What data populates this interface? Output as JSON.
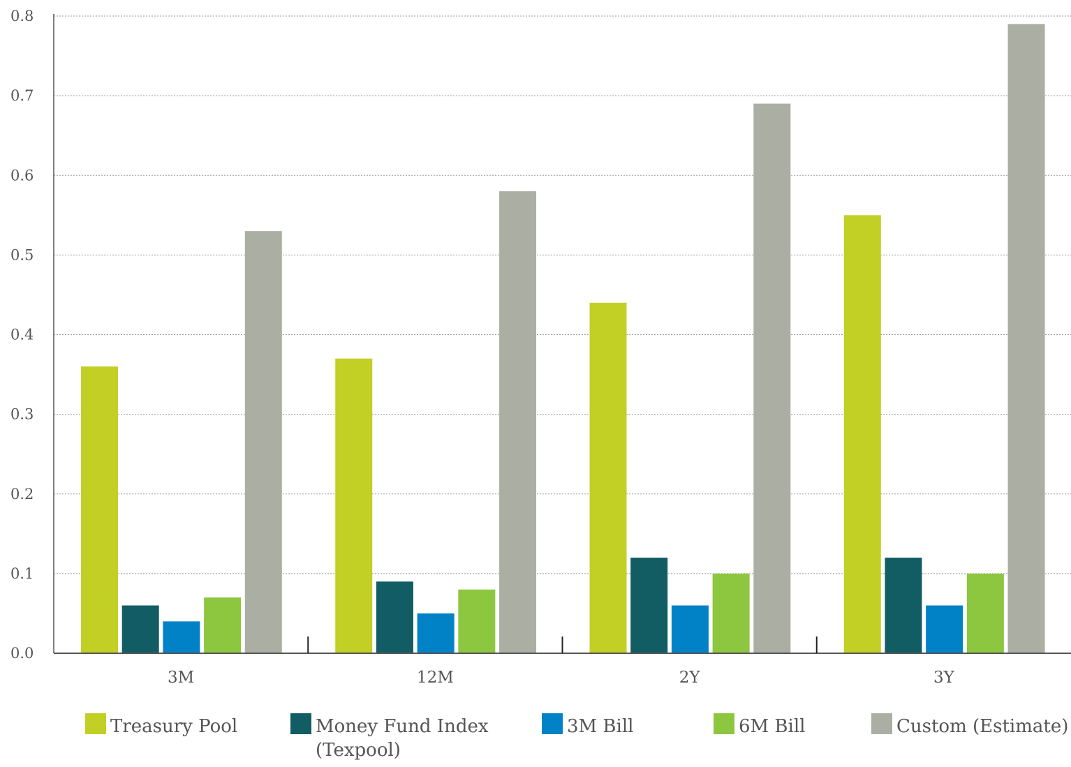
{
  "chart_data": {
    "type": "bar",
    "categories": [
      "3M",
      "12M",
      "2Y",
      "3Y"
    ],
    "series": [
      {
        "name": "Treasury Pool",
        "color": "#c2cf24",
        "values": [
          0.36,
          0.37,
          0.44,
          0.55
        ]
      },
      {
        "name": "Money Fund Index (Texpool)",
        "name_lines": [
          "Money Fund Index",
          "(Texpool)"
        ],
        "color": "#125c64",
        "values": [
          0.06,
          0.09,
          0.12,
          0.12
        ]
      },
      {
        "name": "3M Bill",
        "color": "#0182c6",
        "values": [
          0.04,
          0.05,
          0.06,
          0.06
        ]
      },
      {
        "name": "6M Bill",
        "color": "#8dc63f",
        "values": [
          0.07,
          0.08,
          0.1,
          0.1
        ]
      },
      {
        "name": "Custom (Estimate)",
        "color": "#abaea3",
        "values": [
          0.53,
          0.58,
          0.69,
          0.79
        ]
      }
    ],
    "yticks": [
      "0.0",
      "0.1",
      "0.2",
      "0.3",
      "0.4",
      "0.5",
      "0.6",
      "0.7",
      "0.8"
    ],
    "ylim": [
      0,
      0.8
    ],
    "grid": true,
    "legend_position": "bottom"
  }
}
